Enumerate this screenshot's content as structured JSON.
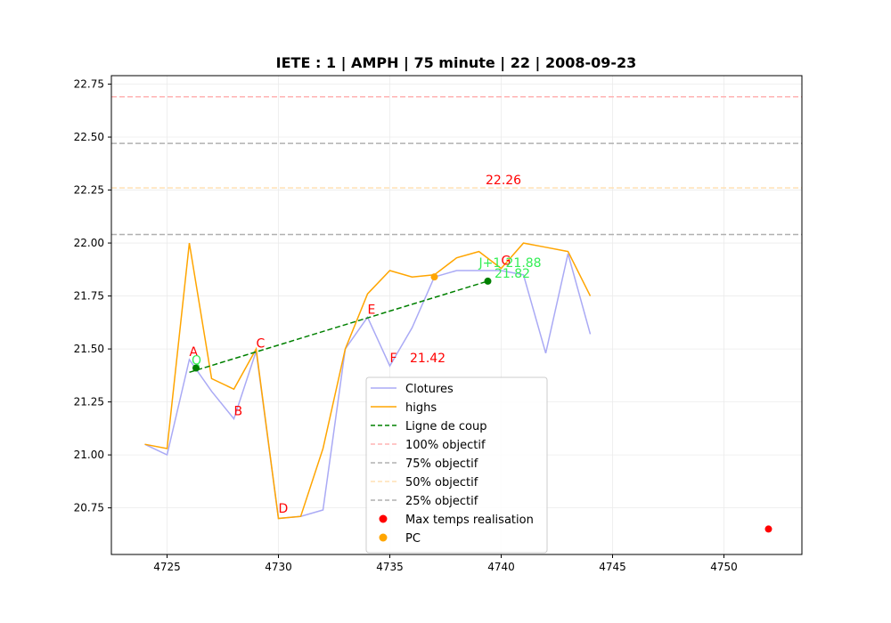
{
  "chart_data": {
    "type": "line",
    "title": "IETE : 1 | AMPH | 75 minute | 22 | 2008-09-23",
    "xlabel": "",
    "ylabel": "",
    "xlim": [
      4722.5,
      4753.5
    ],
    "ylim": [
      20.53,
      22.79
    ],
    "x_ticks": [
      4725,
      4730,
      4735,
      4740,
      4745,
      4750
    ],
    "y_ticks": [
      20.75,
      21.0,
      21.25,
      21.5,
      21.75,
      22.0,
      22.25,
      22.5,
      22.75
    ],
    "x_tick_labels": [
      "4725",
      "4730",
      "4735",
      "4740",
      "4745",
      "4750"
    ],
    "y_tick_labels": [
      "20.75",
      "21.00",
      "21.25",
      "21.50",
      "21.75",
      "22.00",
      "22.25",
      "22.50",
      "22.75"
    ],
    "grid": true,
    "legend_position": "lower-center",
    "series": [
      {
        "name": "Clotures",
        "style": "line",
        "color": "#aaaaf5",
        "x": [
          4724,
          4725,
          4726,
          4727,
          4728,
          4729,
          4730,
          4731,
          4732,
          4733,
          4734,
          4735,
          4736,
          4737,
          4738,
          4739,
          4740,
          4741,
          4742,
          4743,
          4744
        ],
        "y": [
          21.05,
          21.0,
          21.45,
          21.3,
          21.17,
          21.49,
          20.7,
          20.71,
          20.74,
          21.5,
          21.65,
          21.42,
          21.6,
          21.84,
          21.87,
          21.87,
          21.87,
          21.85,
          21.48,
          21.95,
          21.57
        ]
      },
      {
        "name": "highs",
        "style": "line",
        "color": "#ffa500",
        "x": [
          4724,
          4725,
          4726,
          4727,
          4728,
          4729,
          4730,
          4731,
          4732,
          4733,
          4734,
          4735,
          4736,
          4737,
          4738,
          4739,
          4740,
          4741,
          4742,
          4743,
          4744
        ],
        "y": [
          21.05,
          21.03,
          22.0,
          21.36,
          21.31,
          21.5,
          20.7,
          20.71,
          21.03,
          21.5,
          21.76,
          21.87,
          21.84,
          21.85,
          21.93,
          21.96,
          21.88,
          22.0,
          21.98,
          21.96,
          21.75
        ]
      },
      {
        "name": "Ligne de coup",
        "style": "dashed",
        "color": "#008000",
        "x": [
          4726,
          4739.4
        ],
        "y": [
          21.39,
          21.82
        ]
      }
    ],
    "hlines": [
      {
        "name": "100% objectif",
        "y": 22.69,
        "color": "#ffb3b3"
      },
      {
        "name": "75% objectif",
        "y": 22.47,
        "color": "#b0b0b0"
      },
      {
        "name": "50% objectif",
        "y": 22.26,
        "color": "#ffe0b3"
      },
      {
        "name": "25% objectif",
        "y": 22.04,
        "color": "#b0b0b0"
      }
    ],
    "points": [
      {
        "name": "Max temps realisation",
        "x": 4752,
        "y": 20.65,
        "color": "#ff0000"
      },
      {
        "name": "PC",
        "x": 4737,
        "y": 21.84,
        "color": "#ffa500"
      }
    ],
    "green_points": [
      {
        "x": 4726.3,
        "y": 21.41
      },
      {
        "x": 4739.4,
        "y": 21.82
      }
    ],
    "annotations": [
      {
        "text": "A",
        "x": 4726,
        "y": 21.45,
        "color": "#ff0000"
      },
      {
        "text": "B",
        "x": 4728,
        "y": 21.17,
        "color": "#ff0000"
      },
      {
        "text": "C",
        "x": 4729,
        "y": 21.49,
        "color": "#ff0000"
      },
      {
        "text": "D",
        "x": 4730,
        "y": 20.71,
        "color": "#ff0000"
      },
      {
        "text": "E",
        "x": 4734,
        "y": 21.65,
        "color": "#ff0000"
      },
      {
        "text": "F",
        "x": 4735,
        "y": 21.42,
        "color": "#ff0000"
      },
      {
        "text": "G",
        "x": 4740,
        "y": 21.88,
        "color": "#ff0000"
      },
      {
        "text": "21.42",
        "x": 4735.9,
        "y": 21.42,
        "color": "#ff0000"
      },
      {
        "text": "22.26",
        "x": 4739.3,
        "y": 22.26,
        "color": "#ff0000"
      },
      {
        "text": "J+1",
        "x": 4739,
        "y": 21.87,
        "color": "#33ee55"
      },
      {
        "text": "21.88",
        "x": 4740.2,
        "y": 21.87,
        "color": "#33ee55"
      },
      {
        "text": "21.82",
        "x": 4739.7,
        "y": 21.82,
        "color": "#33ee55"
      },
      {
        "text": "Q",
        "x": 4726.1,
        "y": 21.41,
        "color": "#33ee55"
      }
    ],
    "legend": [
      {
        "label": "Clotures",
        "kind": "line",
        "color": "#aaaaf5"
      },
      {
        "label": "highs",
        "kind": "line",
        "color": "#ffa500"
      },
      {
        "label": "Ligne de coup",
        "kind": "dashed",
        "color": "#008000"
      },
      {
        "label": "100% objectif",
        "kind": "dashed",
        "color": "#ffb3b3"
      },
      {
        "label": "75% objectif",
        "kind": "dashed",
        "color": "#b0b0b0"
      },
      {
        "label": "50% objectif",
        "kind": "dashed",
        "color": "#ffe0b3"
      },
      {
        "label": "25% objectif",
        "kind": "dashed",
        "color": "#b0b0b0"
      },
      {
        "label": "Max temps realisation",
        "kind": "dot",
        "color": "#ff0000"
      },
      {
        "label": "PC",
        "kind": "dot",
        "color": "#ffa500"
      }
    ]
  }
}
